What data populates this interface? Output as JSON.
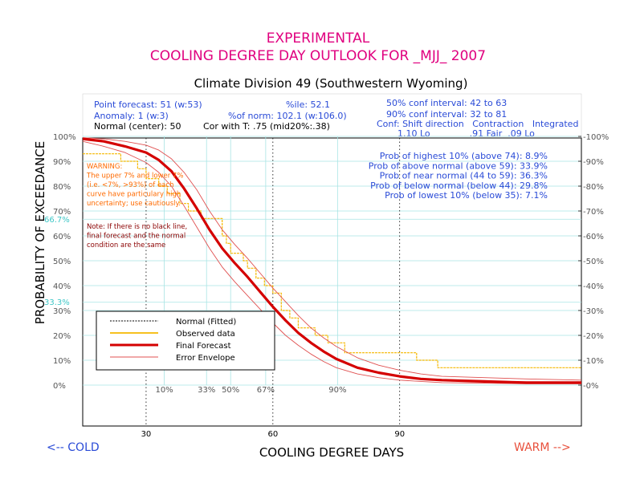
{
  "title_line1": "EXPERIMENTAL",
  "title_line2": "COOLING DEGREE DAY OUTLOOK FOR _MJJ_ 2007",
  "subtitle": "Climate Division 49 (Southwestern Wyoming)",
  "info": {
    "point_forecast": "Point forecast: 51 (w:53)",
    "anomaly": "Anomaly: 1 (w:3)",
    "normal_center": "Normal (center): 50",
    "ile": "%ile: 52.1",
    "pct_of_norm": "%of norm: 102.1 (w:106.0)",
    "cor_with_t": "Cor with T: .75 (mid20%:.38)",
    "conf50": "50% conf interval: 42 to 63",
    "conf90": "90% conf interval: 32 to 81",
    "conf_header": "Conf: Shift direction   Contraction   Integrated",
    "conf_values": "1.10 Lo              .91 Fair  .09 Lo"
  },
  "probabilities": [
    "Prob of highest 10% (above 74): 8.9%",
    "Prob of above normal (above 59): 33.9%",
    "Prob of near normal (44 to 59): 36.3%",
    "Prob of below normal (below 44): 29.8%",
    "Prob of lowest 10% (below 35): 7.1%"
  ],
  "warning_lines": [
    "WARNING:",
    "The upper 7% and lower 7%",
    "(i.e. <7%, >93%) of each",
    "curve have particulary high",
    "uncertainty; use cautiously."
  ],
  "note_lines": [
    "Note: If there is no black line,",
    "final forecast and  the normal",
    "condition are the same"
  ],
  "legend": [
    {
      "label": "Normal (Fitted)",
      "color": "#000000",
      "style": "dashed"
    },
    {
      "label": "Observed data",
      "color": "#f5b800",
      "style": "solid"
    },
    {
      "label": "Final Forecast",
      "color": "#d40000",
      "style": "thick"
    },
    {
      "label": "Error Envelope",
      "color": "#e05050",
      "style": "thin"
    }
  ],
  "cold_label": "<-- COLD",
  "warm_label": "WARM -->",
  "cyan_marks": [
    "66.7%",
    "33.3%"
  ],
  "percentile_labels": [
    {
      "label": "10%",
      "x": 34.3
    },
    {
      "label": "33%",
      "x": 44.3
    },
    {
      "label": "50%",
      "x": 50
    },
    {
      "label": "67%",
      "x": 58.3
    },
    {
      "label": "90%",
      "x": 75.3
    }
  ],
  "colors": {
    "title": "#e0007f",
    "info": "#2a4bd7",
    "forecast": "#d40000",
    "envelope": "#e05050",
    "observed": "#f5b800",
    "grid_cyan": "#a8e4e4",
    "cold": "#2a4bd7",
    "warm": "#e8503c"
  },
  "chart_data": {
    "type": "line",
    "xlabel": "COOLING DEGREE DAYS",
    "ylabel": "PROBABILITY OF EXCEEDANCE",
    "xlim": [
      15,
      133
    ],
    "ylim": [
      0,
      100
    ],
    "x_ticks": [
      30,
      60,
      90
    ],
    "y_ticks": [
      0,
      10,
      20,
      30,
      40,
      50,
      60,
      70,
      80,
      90,
      100
    ],
    "y_tick_labels": [
      "0%",
      "10%",
      "20%",
      "30%",
      "40%",
      "50%",
      "60%",
      "70%",
      "80%",
      "90%",
      "100%"
    ],
    "series": [
      {
        "name": "Final Forecast",
        "x": [
          15,
          20,
          25,
          30,
          33,
          36,
          39,
          42,
          45,
          48,
          51,
          54,
          57,
          60,
          63,
          66,
          69,
          72,
          75,
          80,
          85,
          90,
          95,
          100,
          110,
          120,
          133
        ],
        "y": [
          99,
          98,
          96,
          93.5,
          90.5,
          86,
          79,
          71,
          62.5,
          55,
          49,
          43.5,
          37.5,
          31.5,
          26,
          21,
          17,
          13.5,
          10.5,
          7,
          5,
          3.5,
          2.5,
          2,
          1.5,
          1,
          1
        ]
      },
      {
        "name": "Error Envelope Upper",
        "x": [
          15,
          20,
          25,
          30,
          33,
          36,
          39,
          42,
          45,
          48,
          51,
          54,
          57,
          60,
          63,
          66,
          69,
          72,
          75,
          80,
          85,
          90,
          95,
          100,
          110,
          120,
          133
        ],
        "y": [
          99.5,
          99,
          98,
          96.5,
          94.5,
          91,
          85.5,
          78.5,
          70,
          62.5,
          56.5,
          51,
          45,
          39,
          33.5,
          28,
          23,
          19,
          15.5,
          11,
          8,
          6,
          4.5,
          3.5,
          3,
          2.5,
          2
        ]
      },
      {
        "name": "Error Envelope Lower",
        "x": [
          15,
          20,
          25,
          30,
          33,
          36,
          39,
          42,
          45,
          48,
          51,
          54,
          57,
          60,
          63,
          66,
          69,
          72,
          75,
          80,
          85,
          90,
          95,
          100,
          110,
          120,
          133
        ],
        "y": [
          98,
          96,
          93.5,
          89.5,
          85.5,
          80,
          72,
          63.5,
          55,
          47.5,
          41.5,
          36,
          30.5,
          25,
          20,
          16,
          12.5,
          9.5,
          7,
          4.5,
          3,
          2,
          1.5,
          1,
          0.8,
          0.5,
          0.5
        ]
      },
      {
        "name": "Observed data",
        "x": [
          15,
          24,
          24,
          28,
          28,
          30,
          30,
          33,
          33,
          35,
          35,
          38,
          38,
          40,
          40,
          43,
          43,
          48,
          48,
          49,
          49,
          50,
          50,
          53,
          53,
          54,
          54,
          56,
          56,
          58,
          58,
          60,
          60,
          62,
          62,
          64,
          64,
          66,
          66,
          70,
          70,
          73,
          73,
          77,
          77,
          94,
          94,
          99,
          99,
          133
        ],
        "y": [
          93,
          93,
          90,
          90,
          87,
          87,
          83,
          83,
          80,
          80,
          77,
          77,
          73,
          73,
          70,
          70,
          67,
          67,
          60,
          60,
          57,
          57,
          53,
          53,
          50,
          50,
          47,
          47,
          43,
          43,
          40,
          40,
          37,
          37,
          30,
          30,
          27,
          27,
          23,
          23,
          20,
          20,
          17,
          17,
          13,
          13,
          10,
          10,
          7,
          7
        ]
      }
    ]
  }
}
